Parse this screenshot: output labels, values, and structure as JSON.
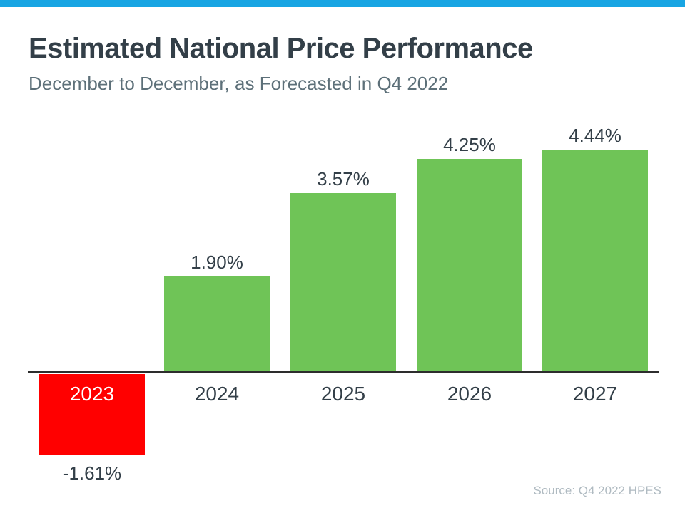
{
  "page": {
    "title": "Estimated National Price Performance",
    "subtitle": "December to December, as Forecasted in Q4 2022",
    "source": "Source: Q4 2022 HPES"
  },
  "colors": {
    "top_accent": "#18A5E3",
    "positive_bar": "#6FC457",
    "negative_bar": "#FF0000",
    "title_text": "#333F48",
    "subtitle_text": "#5D7079",
    "label_text": "#333F48",
    "negative_category_text": "#FFFFFF",
    "axis_line": "#2D2D2D",
    "source_text": "#AFBAC1"
  },
  "chart_data": {
    "type": "bar",
    "title": "Estimated National Price Performance",
    "subtitle": "December to December, as Forecasted in Q4 2022",
    "categories": [
      "2023",
      "2024",
      "2025",
      "2026",
      "2027"
    ],
    "values": [
      -1.61,
      1.9,
      3.57,
      4.25,
      4.44
    ],
    "labels": [
      "-1.61%",
      "1.90%",
      "3.57%",
      "4.25%",
      "4.44%"
    ],
    "bar_colors": [
      "#FF0000",
      "#6FC457",
      "#6FC457",
      "#6FC457",
      "#6FC457"
    ],
    "xlabel": "",
    "ylabel": "",
    "ylim": [
      -2,
      5
    ],
    "grid": false,
    "legend": false,
    "annotation": "Source: Q4 2022 HPES"
  }
}
